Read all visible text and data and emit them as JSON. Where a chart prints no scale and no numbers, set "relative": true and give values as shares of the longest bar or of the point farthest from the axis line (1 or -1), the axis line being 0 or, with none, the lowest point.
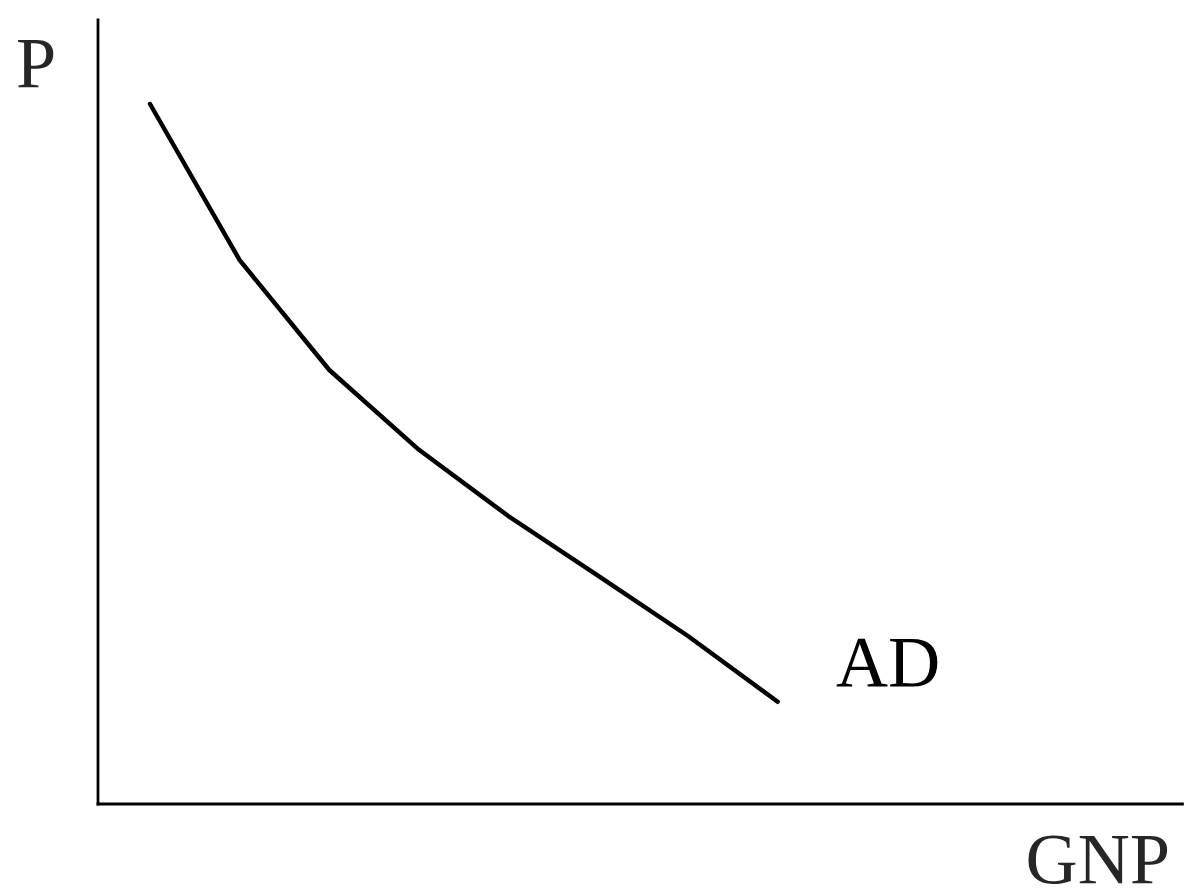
{
  "chart_data": {
    "type": "line",
    "relative": true,
    "xlabel": "GNP",
    "ylabel": "P",
    "categories": [
      null,
      null,
      null,
      null,
      null,
      null,
      null,
      null
    ],
    "series": [
      {
        "name": "AD",
        "color": "#000000",
        "values": [
          1.0,
          0.777,
          0.62,
          0.506,
          0.411,
          0.326,
          0.24,
          0.146
        ]
      }
    ],
    "marker": "none",
    "line_style": "solid"
  }
}
